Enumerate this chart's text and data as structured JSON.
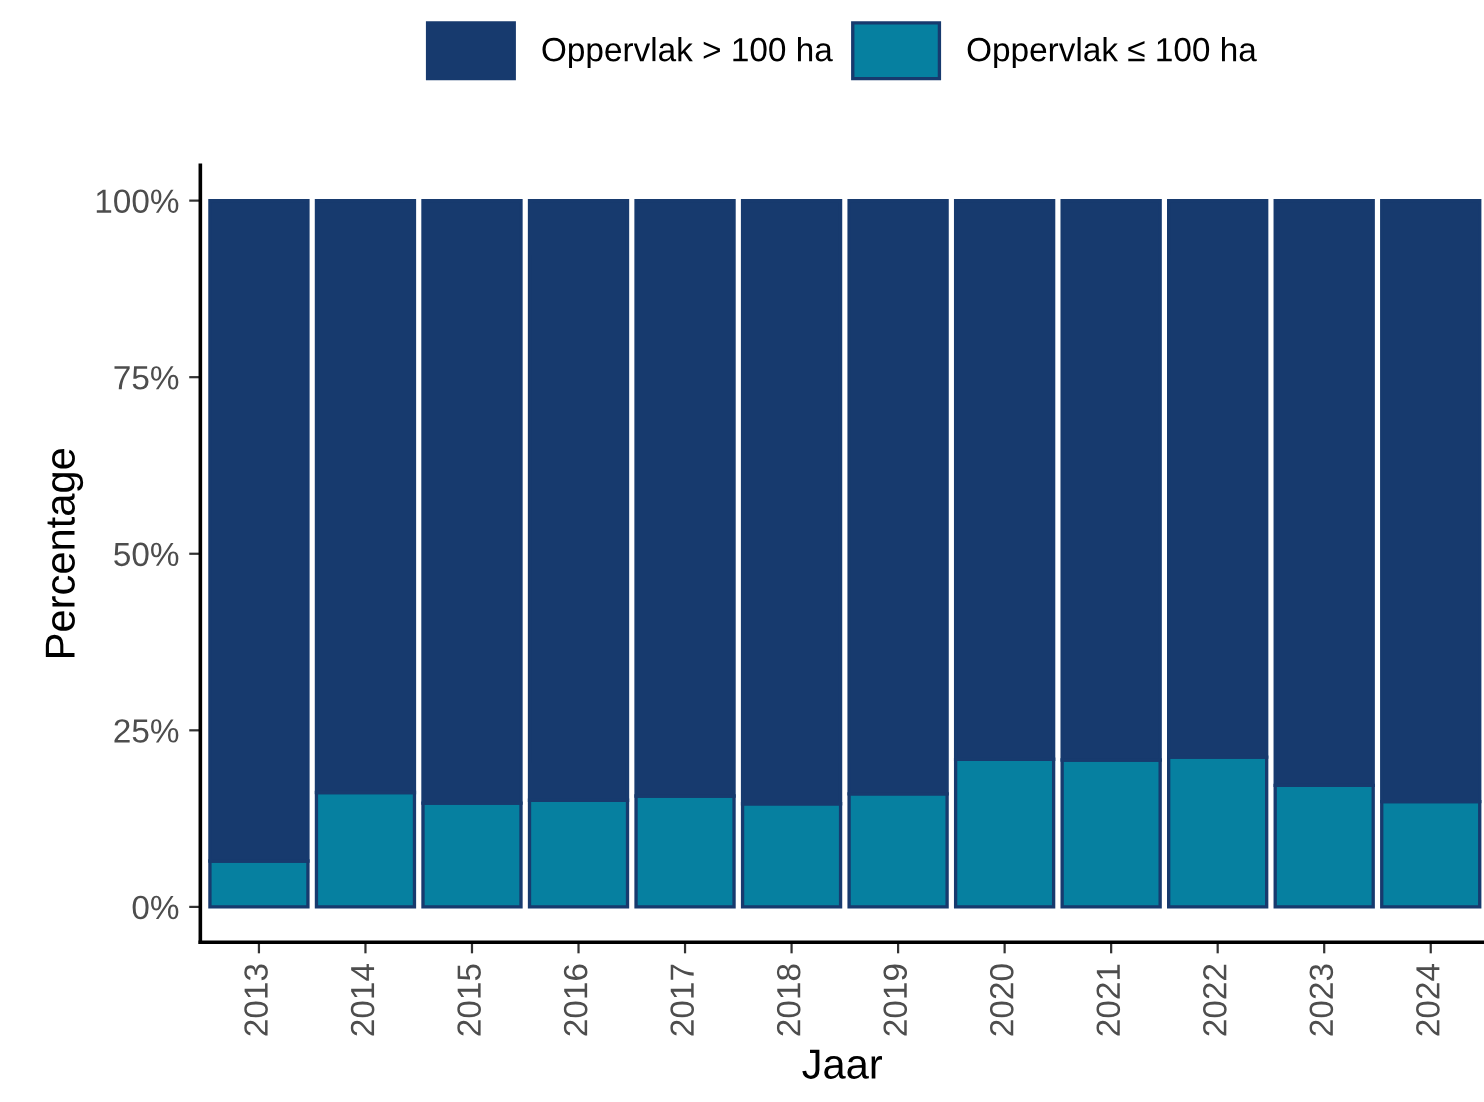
{
  "chart_data": {
    "type": "bar",
    "stacked": true,
    "xlabel": "Jaar",
    "ylabel": "Percentage",
    "categories": [
      "2013",
      "2014",
      "2015",
      "2016",
      "2017",
      "2018",
      "2019",
      "2020",
      "2021",
      "2022",
      "2023",
      "2024"
    ],
    "series": [
      {
        "name": "Oppervlak ≤ 100 ha",
        "color": "#0680a0",
        "values": [
          6.5,
          16.2,
          14.7,
          15.1,
          15.7,
          14.6,
          16.0,
          20.9,
          20.8,
          21.2,
          17.2,
          14.9
        ]
      },
      {
        "name": "Oppervlak > 100 ha",
        "color": "#173a6e",
        "values": [
          93.5,
          83.8,
          85.3,
          84.9,
          84.3,
          85.4,
          84.0,
          79.1,
          79.2,
          78.8,
          82.8,
          85.1
        ]
      }
    ],
    "ylim": [
      -5,
      105
    ],
    "yticks": [
      {
        "value": 0,
        "label": "0%"
      },
      {
        "value": 25,
        "label": "25%"
      },
      {
        "value": 50,
        "label": "50%"
      },
      {
        "value": 75,
        "label": "75%"
      },
      {
        "value": 100,
        "label": "100%"
      }
    ],
    "grid": false,
    "legend": "top"
  }
}
